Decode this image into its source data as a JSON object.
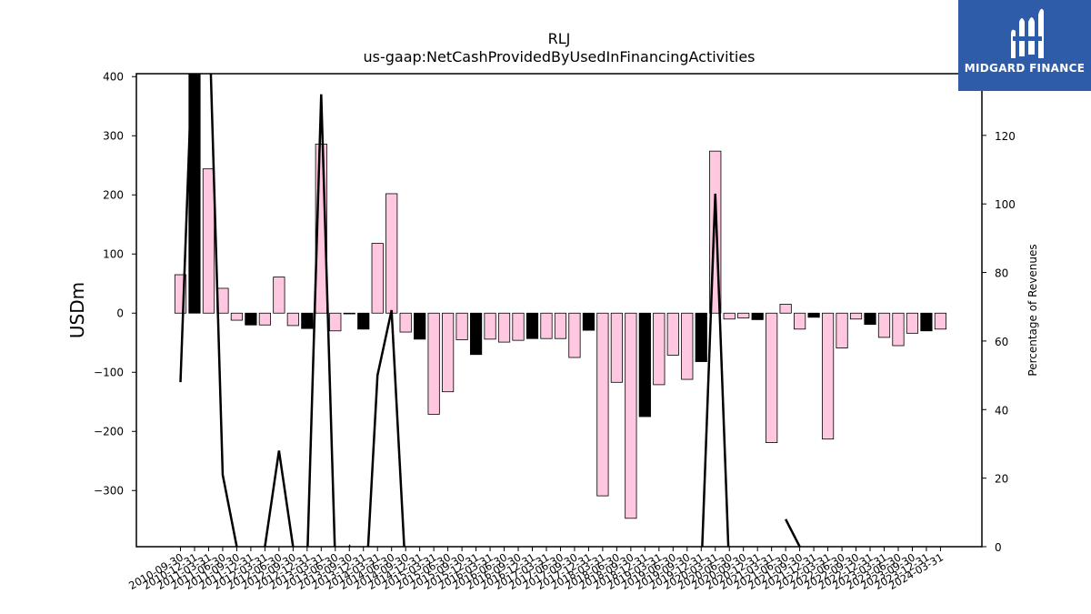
{
  "chart_data": {
    "type": "bar",
    "title": "RLJ",
    "subtitle": "us-gaap:NetCashProvidedByUsedInFinancingActivities",
    "ylabel": "USDm",
    "y2label": "Percentage of Revenues",
    "ylim": [
      -395,
      405
    ],
    "y2lim": [
      0,
      138
    ],
    "yticks": [
      -300,
      -200,
      -100,
      0,
      100,
      200,
      300,
      400
    ],
    "y2ticks": [
      0,
      20,
      40,
      60,
      80,
      100,
      120
    ],
    "colors": {
      "pink": "#ffc8e0",
      "black": "#000000"
    },
    "categories": [
      "2010-09-30",
      "2010-12-31",
      "2011-03-31",
      "2011-06-30",
      "2011-09-30",
      "2011-12-31",
      "2012-03-31",
      "2012-06-30",
      "2012-09-30",
      "2012-12-31",
      "2013-03-31",
      "2013-06-30",
      "2013-09-30",
      "2013-12-31",
      "2014-03-31",
      "2014-06-30",
      "2014-09-30",
      "2014-12-31",
      "2015-03-31",
      "2015-06-30",
      "2015-09-30",
      "2015-12-31",
      "2016-03-31",
      "2016-06-30",
      "2016-09-30",
      "2016-12-31",
      "2017-03-31",
      "2017-06-30",
      "2017-09-30",
      "2017-12-31",
      "2018-03-31",
      "2018-06-30",
      "2018-09-30",
      "2018-12-31",
      "2019-03-31",
      "2019-06-30",
      "2019-09-30",
      "2019-12-31",
      "2020-03-31",
      "2020-06-30",
      "2020-09-30",
      "2020-12-31",
      "2021-03-31",
      "2021-06-30",
      "2021-09-30",
      "2021-12-31",
      "2022-03-31",
      "2022-06-30",
      "2022-09-30",
      "2022-12-31",
      "2023-03-31",
      "2023-06-30",
      "2023-09-30",
      "2023-12-31",
      "2024-03-31"
    ],
    "values": [
      65,
      410,
      244,
      42,
      -12,
      -20,
      -20,
      61,
      -21,
      -26,
      286,
      -30,
      0,
      -27,
      118,
      202,
      -32,
      -44,
      -171,
      -133,
      -45,
      -70,
      -44,
      -49,
      -46,
      -43,
      -43,
      -43,
      -75,
      -29,
      -309,
      -117,
      -347,
      -175,
      -121,
      -71,
      -112,
      -82,
      274,
      -10,
      -8,
      -11,
      -219,
      15,
      -27,
      -7,
      -213,
      -59,
      -10,
      -19,
      -41,
      -55,
      -34,
      -30,
      -27
    ],
    "bar_colors": [
      "pink",
      "black",
      "pink",
      "pink",
      "pink",
      "black",
      "pink",
      "pink",
      "pink",
      "black",
      "pink",
      "pink",
      "pink",
      "black",
      "pink",
      "pink",
      "pink",
      "black",
      "pink",
      "pink",
      "pink",
      "black",
      "pink",
      "pink",
      "pink",
      "black",
      "pink",
      "pink",
      "pink",
      "black",
      "pink",
      "pink",
      "pink",
      "black",
      "pink",
      "pink",
      "pink",
      "black",
      "pink",
      "pink",
      "pink",
      "black",
      "pink",
      "pink",
      "pink",
      "black",
      "pink",
      "pink",
      "pink",
      "black",
      "pink",
      "pink",
      "pink",
      "black",
      "pink"
    ],
    "line": {
      "color": "#000000",
      "values": [
        48,
        160,
        160,
        21,
        0,
        -8,
        0,
        28,
        0,
        -5,
        132,
        -5,
        0,
        -25,
        50,
        69,
        -8,
        null,
        null,
        null,
        null,
        null,
        null,
        null,
        null,
        null,
        null,
        null,
        null,
        null,
        null,
        null,
        null,
        null,
        null,
        null,
        null,
        -8,
        103,
        -8,
        null,
        null,
        null,
        8,
        0,
        null,
        null,
        null,
        null,
        null,
        null,
        null,
        null,
        null,
        null
      ]
    }
  },
  "logo": {
    "text": "MIDGARD FINANCE"
  }
}
